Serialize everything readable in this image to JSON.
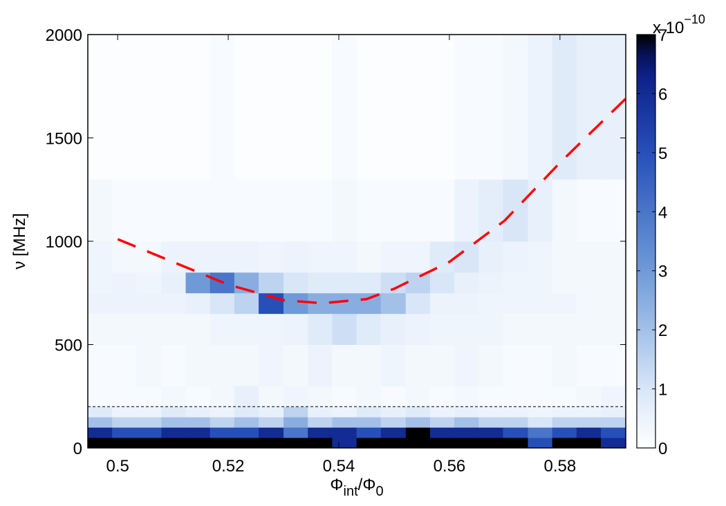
{
  "chart_data": {
    "type": "heatmap",
    "xlabel": [
      "Φ",
      "int",
      "/Φ",
      "0"
    ],
    "ylabel": "ν [MHz]",
    "colorbar_label": [
      "x 10",
      "−10"
    ],
    "xlim": [
      0.4946,
      0.5919
    ],
    "ylim": [
      0,
      2000
    ],
    "xticks": [
      0.5,
      0.52,
      0.54,
      0.56,
      0.58
    ],
    "yticks": [
      0,
      500,
      1000,
      1500,
      2000
    ],
    "clim": [
      0,
      7
    ],
    "cticks": [
      0,
      1,
      2,
      3,
      4,
      5,
      6,
      7
    ],
    "x_edges": [
      0.4946,
      0.499,
      0.5034,
      0.5079,
      0.5123,
      0.5167,
      0.5211,
      0.5255,
      0.53,
      0.5344,
      0.5388,
      0.5432,
      0.5476,
      0.5521,
      0.5565,
      0.5609,
      0.5653,
      0.5697,
      0.5742,
      0.5786,
      0.583,
      0.5874,
      0.5919
    ],
    "y_edges": [
      0,
      50,
      100,
      150,
      200,
      300,
      500,
      650,
      750,
      850,
      1000,
      1300,
      2000
    ],
    "z": [
      [
        7,
        7,
        7,
        7,
        7,
        7,
        7,
        7,
        7,
        7,
        6,
        7,
        7,
        7,
        7,
        7,
        7,
        7,
        5,
        7,
        7,
        6
      ],
      [
        6,
        5,
        5,
        6,
        6,
        5,
        5,
        6,
        4,
        6,
        6,
        5,
        6,
        7,
        6,
        6,
        6,
        5,
        4,
        5,
        6,
        5
      ],
      [
        2,
        1.5,
        1.5,
        2,
        2,
        1.5,
        2,
        1.5,
        2.5,
        1.5,
        2,
        2,
        1.5,
        2,
        1.5,
        2,
        1.5,
        1.5,
        1,
        1.5,
        1.5,
        1.5
      ],
      [
        0.8,
        0.5,
        0.5,
        0.8,
        0.6,
        0.5,
        0.8,
        0.6,
        1.5,
        0.6,
        0.5,
        0.8,
        0.6,
        0.8,
        0.5,
        0.6,
        0.5,
        0.5,
        0.4,
        0.5,
        0.5,
        0.6
      ],
      [
        0.2,
        0.2,
        0.2,
        0.3,
        0.2,
        0.3,
        0.6,
        0.3,
        0.4,
        0.3,
        0.2,
        0.3,
        0.2,
        0.3,
        0.2,
        0.3,
        0.2,
        0.2,
        0.2,
        0.2,
        0.3,
        0.4
      ],
      [
        0.2,
        0.2,
        0.3,
        0.2,
        0.3,
        0.3,
        0.3,
        0.4,
        0.3,
        0.5,
        0.3,
        0.3,
        0.4,
        0.3,
        0.3,
        0.4,
        0.3,
        0.2,
        0.2,
        0.3,
        0.2,
        0.2
      ],
      [
        0.3,
        0.3,
        0.3,
        0.3,
        0.3,
        0.4,
        0.4,
        0.4,
        0.5,
        0.8,
        1.2,
        0.8,
        0.6,
        0.5,
        0.4,
        0.4,
        0.4,
        0.3,
        0.3,
        0.3,
        0.3,
        0.3
      ],
      [
        0.5,
        0.5,
        0.5,
        0.5,
        0.6,
        1,
        1.5,
        5,
        3,
        2.5,
        2.5,
        2.5,
        2,
        1,
        0.5,
        0.5,
        0.4,
        0.4,
        0.4,
        0.4,
        0.3,
        0.3
      ],
      [
        0.4,
        0.5,
        0.4,
        0.6,
        3,
        4,
        2.5,
        1.5,
        1,
        0.8,
        0.8,
        0.8,
        1.2,
        1.5,
        1,
        0.6,
        0.5,
        0.4,
        0.4,
        0.3,
        0.3,
        0.3
      ],
      [
        0.4,
        0.3,
        0.3,
        0.5,
        0.5,
        0.5,
        0.5,
        0.4,
        0.5,
        0.4,
        0.4,
        0.3,
        0.4,
        0.4,
        0.8,
        1,
        0.6,
        0.5,
        0.4,
        0.3,
        0.3,
        0.3
      ],
      [
        0.3,
        0.2,
        0.2,
        0.2,
        0.2,
        0.2,
        0.2,
        0.2,
        0.2,
        0.2,
        0.3,
        0.2,
        0.2,
        0.2,
        0.2,
        0.5,
        0.7,
        1,
        0.6,
        0.3,
        0.2,
        0.2
      ],
      [
        0.1,
        0.1,
        0.1,
        0.1,
        0.1,
        0.2,
        0.1,
        0.1,
        0.1,
        0.1,
        0.2,
        0.1,
        0.1,
        0.1,
        0.1,
        0.2,
        0.2,
        0.3,
        0.5,
        0.8,
        0.6,
        0.6
      ]
    ],
    "fit": {
      "color": "#ff0000",
      "x": [
        0.5,
        0.51,
        0.52,
        0.53,
        0.537,
        0.545,
        0.55,
        0.56,
        0.57,
        0.58,
        0.5919
      ],
      "y": [
        1010,
        900,
        790,
        715,
        700,
        720,
        770,
        900,
        1100,
        1380,
        1690
      ]
    },
    "hline": {
      "value": 200,
      "color": "#000000"
    }
  }
}
